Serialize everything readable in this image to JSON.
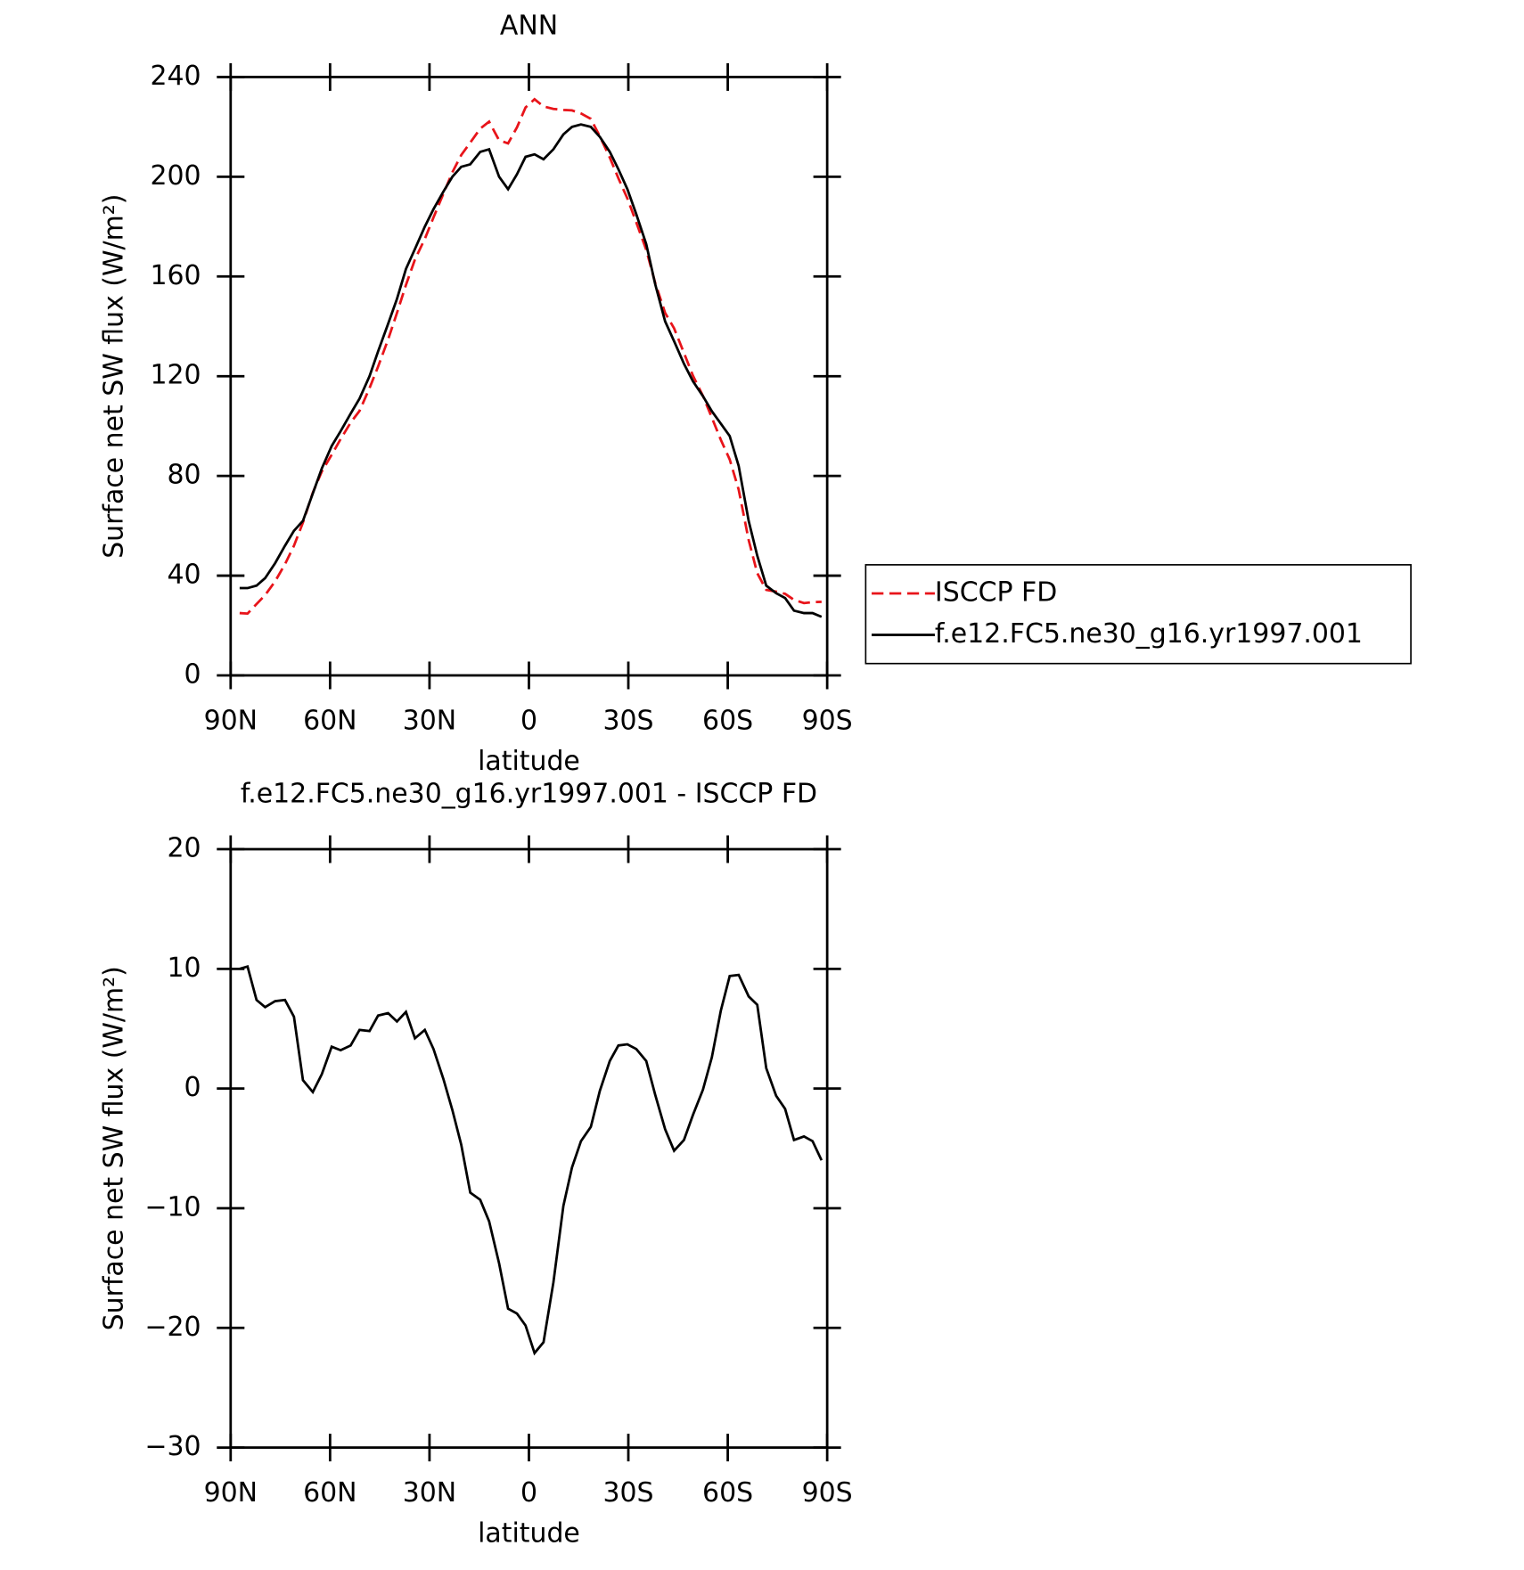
{
  "chart_data": [
    {
      "type": "line",
      "title": "ANN",
      "xlabel": "latitude",
      "ylabel": "Surface net SW flux (W/m²)",
      "xlim": [
        90,
        -90
      ],
      "xticks": [
        {
          "value": 90,
          "label": "90N"
        },
        {
          "value": 60,
          "label": "60N"
        },
        {
          "value": 30,
          "label": "30N"
        },
        0,
        {
          "value": -30,
          "label": "30S"
        },
        {
          "value": -60,
          "label": "60S"
        },
        {
          "value": -90,
          "label": "90S"
        }
      ],
      "ylim": [
        0,
        240
      ],
      "yticks": [
        0,
        40,
        80,
        120,
        160,
        200,
        240
      ],
      "legend": "right",
      "x": [
        87.3,
        84.9,
        82.2,
        79.6,
        76.6,
        73.6,
        70.9,
        68.2,
        65.2,
        62.5,
        59.5,
        56.8,
        53.8,
        51.1,
        48.1,
        45.5,
        42.5,
        39.8,
        37.1,
        34.4,
        31.4,
        28.8,
        25.8,
        23.1,
        20.4,
        17.7,
        14.7,
        12.0,
        9.0,
        6.3,
        3.6,
        1.0,
        -1.7,
        -4.4,
        -7.4,
        -10.4,
        -13.0,
        -15.7,
        -18.7,
        -21.4,
        -24.4,
        -27.0,
        -29.7,
        -32.4,
        -35.4,
        -38.1,
        -41.1,
        -43.8,
        -46.8,
        -49.5,
        -52.5,
        -55.2,
        -57.9,
        -60.6,
        -63.3,
        -66.3,
        -68.9,
        -71.6,
        -74.6,
        -77.3,
        -80.0,
        -83.0,
        -85.6,
        -88.3
      ],
      "series": [
        {
          "name": "ISCCP FD",
          "color": "#e8141a",
          "dash": "dashed",
          "values": [
            25,
            24.8,
            28.6,
            32.2,
            37.7,
            44.6,
            52,
            61.3,
            73.3,
            81.8,
            88.5,
            94.8,
            101.4,
            106.1,
            115.2,
            123.9,
            134.7,
            145.4,
            156.6,
            166.8,
            175.1,
            183.7,
            193.2,
            201.8,
            208.7,
            213.7,
            219.3,
            222.1,
            214.6,
            213.4,
            219.8,
            227.8,
            231.1,
            228.2,
            227.2,
            226.8,
            226.6,
            225.4,
            223.2,
            216.2,
            207.7,
            199.4,
            191.3,
            181.7,
            170.7,
            157.5,
            145.4,
            139.2,
            129.3,
            120.2,
            112.1,
            103.4,
            94.5,
            86.6,
            74.5,
            54.3,
            41,
            34.3,
            33.6,
            32.7,
            30.3,
            29,
            29.4,
            29.5
          ]
        },
        {
          "name": "f.e12.FC5.ne30_g16.yr1997.001",
          "color": "#000000",
          "dash": "solid",
          "values": [
            35,
            35,
            36,
            39,
            45,
            52,
            58,
            62,
            73,
            83,
            92,
            98,
            105,
            111,
            120,
            130,
            141,
            151,
            163,
            171,
            180,
            187,
            194,
            200,
            204,
            205,
            210,
            211,
            200,
            195,
            201,
            208,
            209,
            207,
            211,
            217,
            220,
            221,
            220,
            216,
            210,
            203,
            195,
            185,
            173,
            157,
            142,
            134,
            125,
            118,
            112,
            106,
            101,
            96,
            84,
            62,
            48,
            36,
            33,
            31,
            26,
            25,
            25,
            23.5
          ]
        }
      ]
    },
    {
      "type": "line",
      "title": "f.e12.FC5.ne30_g16.yr1997.001 - ISCCP FD",
      "xlabel": "latitude",
      "ylabel": "Surface net SW flux (W/m²)",
      "xlim": [
        90,
        -90
      ],
      "xticks": [
        {
          "value": 90,
          "label": "90N"
        },
        {
          "value": 60,
          "label": "60N"
        },
        {
          "value": 30,
          "label": "30N"
        },
        0,
        {
          "value": -30,
          "label": "30S"
        },
        {
          "value": -60,
          "label": "60S"
        },
        {
          "value": -90,
          "label": "90S"
        }
      ],
      "ylim": [
        -30,
        20
      ],
      "yticks": [
        {
          "value": -30,
          "label": "−30"
        },
        {
          "value": -20,
          "label": "−20"
        },
        {
          "value": -10,
          "label": "−10"
        },
        0,
        10,
        20
      ],
      "x": [
        87.3,
        84.9,
        82.2,
        79.6,
        76.6,
        73.6,
        70.9,
        68.2,
        65.2,
        62.5,
        59.5,
        56.8,
        53.8,
        51.1,
        48.1,
        45.5,
        42.5,
        39.8,
        37.1,
        34.4,
        31.4,
        28.8,
        25.8,
        23.1,
        20.4,
        17.7,
        14.7,
        12.0,
        9.0,
        6.3,
        3.6,
        1.0,
        -1.7,
        -4.4,
        -7.4,
        -10.4,
        -13.0,
        -15.7,
        -18.7,
        -21.4,
        -24.4,
        -27.0,
        -29.7,
        -32.4,
        -35.4,
        -38.1,
        -41.1,
        -43.8,
        -46.8,
        -49.5,
        -52.5,
        -55.2,
        -57.9,
        -60.6,
        -63.3,
        -66.3,
        -68.9,
        -71.6,
        -74.6,
        -77.3,
        -80.0,
        -83.0,
        -85.6,
        -88.3
      ],
      "series": [
        {
          "color": "#000000",
          "values": [
            10,
            10.2,
            7.4,
            6.8,
            7.3,
            7.4,
            6,
            0.7,
            -0.3,
            1.2,
            3.5,
            3.2,
            3.6,
            4.9,
            4.8,
            6.1,
            6.3,
            5.6,
            6.4,
            4.2,
            4.9,
            3.3,
            0.8,
            -1.8,
            -4.7,
            -8.7,
            -9.3,
            -11.1,
            -14.6,
            -18.4,
            -18.8,
            -19.8,
            -22.1,
            -21.2,
            -16.2,
            -9.8,
            -6.6,
            -4.4,
            -3.2,
            -0.2,
            2.3,
            3.6,
            3.7,
            3.3,
            2.3,
            -0.5,
            -3.4,
            -5.2,
            -4.3,
            -2.2,
            -0.1,
            2.6,
            6.5,
            9.4,
            9.5,
            7.7,
            7,
            1.7,
            -0.6,
            -1.7,
            -4.3,
            -4,
            -4.4,
            -6
          ]
        }
      ]
    }
  ]
}
